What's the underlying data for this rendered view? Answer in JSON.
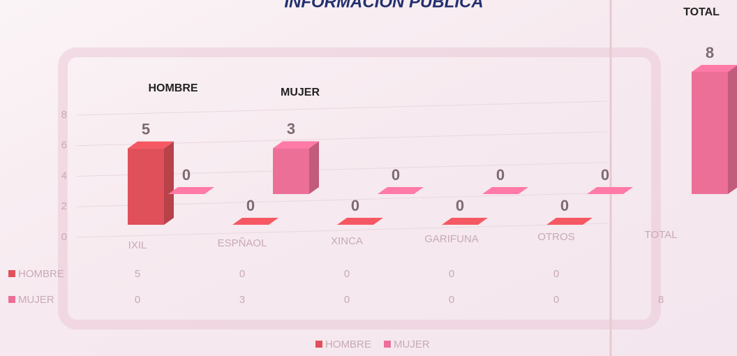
{
  "chart_data": {
    "type": "bar3d",
    "title": "INFORMACIÓN PÚBLICA",
    "annotations": [
      "HOMBRE",
      "MUJER",
      "TOTAL"
    ],
    "categories": [
      "IXIL",
      "ESPÑAOL",
      "XINCA",
      "GARIFUNA",
      "OTROS",
      "TOTAL"
    ],
    "series": [
      {
        "name": "HOMBRE",
        "color": "#e0505a",
        "values": [
          5,
          0,
          0,
          0,
          0,
          null
        ]
      },
      {
        "name": "MUJER",
        "color": "#ec6f97",
        "values": [
          0,
          3,
          0,
          0,
          0,
          8
        ]
      }
    ],
    "ylim": [
      0,
      8
    ],
    "yticks": [
      0,
      2,
      4,
      6,
      8
    ],
    "grid": true,
    "legend": "bottom"
  }
}
